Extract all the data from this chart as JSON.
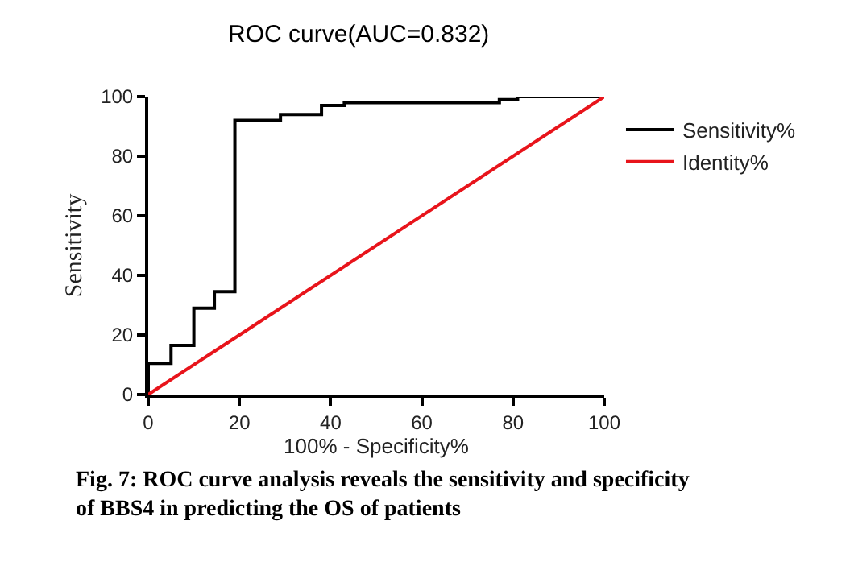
{
  "chart_data": {
    "type": "line",
    "title": "ROC curve(AUC=0.832)",
    "xlabel": "100% - Specificity%",
    "ylabel": "Sensitivity",
    "xlim": [
      0,
      100
    ],
    "xticks": [
      0,
      20,
      40,
      60,
      80,
      100
    ],
    "ylim": [
      0,
      100
    ],
    "yticks": [
      0,
      20,
      40,
      60,
      80,
      100
    ],
    "legend": "right",
    "marker": "none",
    "line_style": "solid",
    "series": [
      {
        "name": "Sensitivity%",
        "color": "#000000",
        "x": [
          0,
          0,
          5,
          5,
          10,
          10,
          14.5,
          14.5,
          19,
          19,
          29,
          29,
          38,
          38,
          43,
          43,
          77,
          77,
          81,
          81,
          100
        ],
        "values": [
          0,
          10.5,
          10.5,
          16.5,
          16.5,
          29,
          29,
          34.5,
          34.5,
          92,
          92,
          94,
          94,
          97,
          97,
          98,
          98,
          99,
          99,
          100,
          100
        ]
      },
      {
        "name": "Identity%",
        "color": "#e8141b",
        "x": [
          0,
          100
        ],
        "values": [
          0,
          100
        ]
      }
    ],
    "annotations": [
      "Fig. 7: ROC curve analysis reveals the sensitivity and specificity\nof BBS4 in predicting the OS of patients"
    ]
  }
}
